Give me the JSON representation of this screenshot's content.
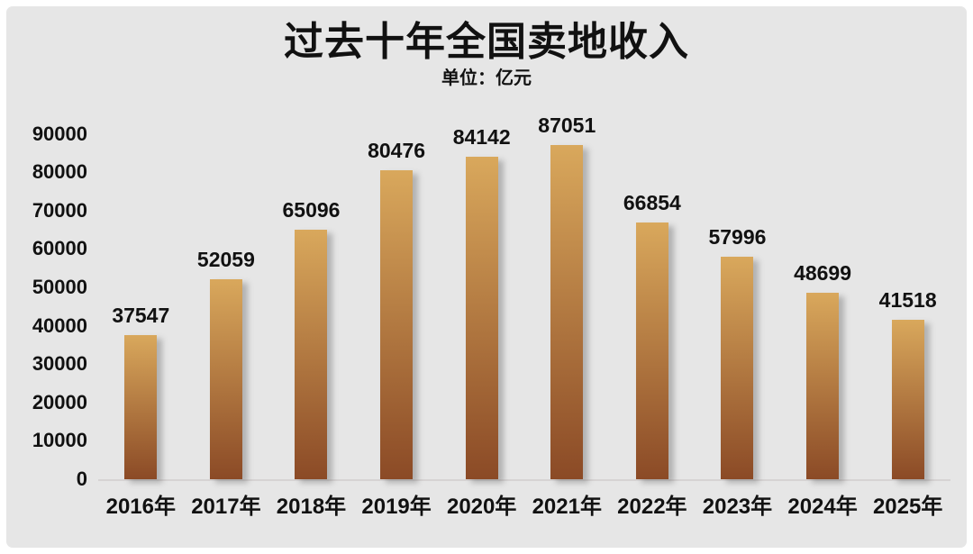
{
  "page": {
    "background_color": "#e6e6e6",
    "frame_border_color": "#ffffff",
    "text_color": "#111111"
  },
  "chart_data": {
    "type": "bar",
    "title": "过去十年全国卖地收入",
    "subtitle": "单位：亿元",
    "categories": [
      "2016年",
      "2017年",
      "2018年",
      "2019年",
      "2020年",
      "2021年",
      "2022年",
      "2023年",
      "2024年",
      "2025年"
    ],
    "values": [
      37547,
      52059,
      65096,
      80476,
      84142,
      87051,
      66854,
      57996,
      48699,
      41518
    ],
    "y_ticks": [
      0,
      10000,
      20000,
      30000,
      40000,
      50000,
      60000,
      70000,
      80000,
      90000
    ],
    "ylim": [
      0,
      90000
    ],
    "xlabel": "",
    "ylabel": "",
    "grid": false,
    "legend": "none",
    "data_labels": true,
    "bar_gradient_top": "#d9a85c",
    "bar_gradient_bottom": "#8b4a26"
  }
}
